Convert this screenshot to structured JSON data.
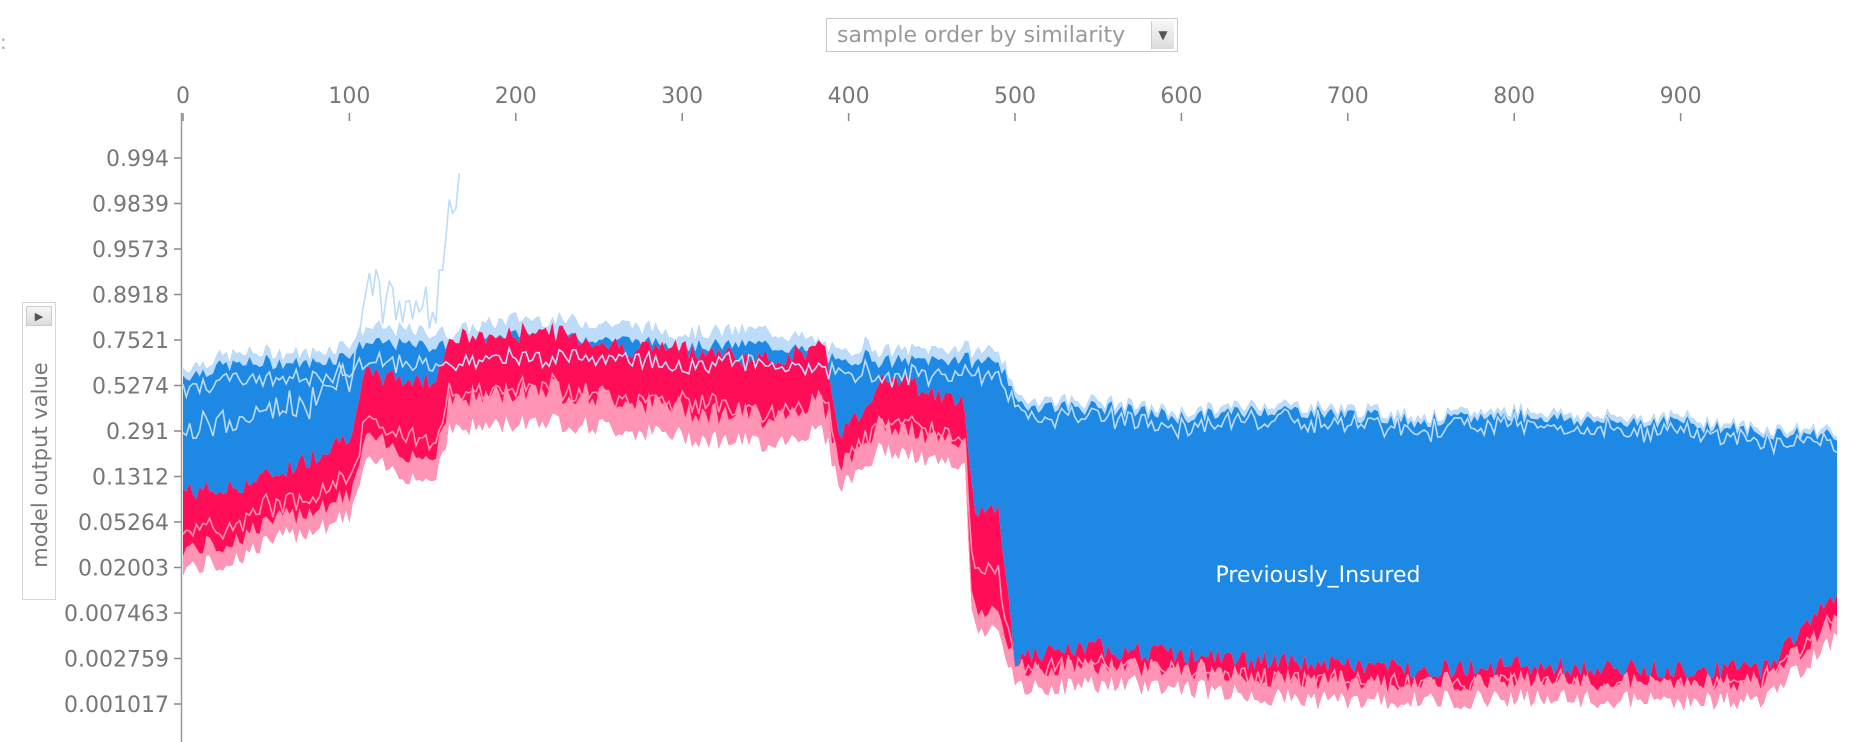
{
  "controls": {
    "ordering_select": "sample order by similarity",
    "ordering_options": [
      "sample order by similarity"
    ],
    "ylabel_select": "model output value",
    "edge_mark": ":"
  },
  "colors": {
    "negative_dark": "#1e88e5",
    "negative_light": "#bcdcfa",
    "positive_dark": "#ff0d57",
    "positive_light": "#ff94b4",
    "axis": "#888888"
  },
  "chart_data": {
    "type": "area",
    "subtype": "stacked force plot",
    "x_ticks": [
      0,
      100,
      200,
      300,
      400,
      500,
      600,
      700,
      800,
      900
    ],
    "xlim": [
      0,
      1000
    ],
    "y_ticks": [
      "0.994",
      "0.9839",
      "0.9573",
      "0.8918",
      "0.7521",
      "0.5274",
      "0.291",
      "0.1312",
      "0.05264",
      "0.02003",
      "0.007463",
      "0.002759",
      "0.001017"
    ],
    "y_scale": "logit",
    "feature_annotation": "Previously_Insured",
    "series_estimate": {
      "x": [
        0,
        25,
        50,
        75,
        100,
        110,
        150,
        160,
        200,
        210,
        265,
        300,
        350,
        385,
        395,
        410,
        420,
        470,
        475,
        490,
        500,
        550,
        600,
        650,
        700,
        750,
        800,
        850,
        900,
        950,
        994
      ],
      "upper_edge": [
        0.62,
        0.68,
        0.7,
        0.69,
        0.74,
        0.8,
        0.78,
        0.78,
        0.83,
        0.83,
        0.81,
        0.78,
        0.79,
        0.74,
        0.68,
        0.74,
        0.7,
        0.72,
        0.7,
        0.72,
        0.46,
        0.44,
        0.38,
        0.43,
        0.4,
        0.36,
        0.4,
        0.36,
        0.36,
        0.3,
        0.3
      ],
      "positive_top": [
        0.1,
        0.1,
        0.13,
        0.18,
        0.28,
        0.58,
        0.55,
        0.76,
        0.77,
        0.8,
        0.72,
        0.72,
        0.66,
        0.72,
        0.28,
        0.4,
        0.6,
        0.42,
        0.07,
        0.07,
        0.0028,
        0.0035,
        0.003,
        0.0026,
        0.0024,
        0.0022,
        0.0024,
        0.0022,
        0.0022,
        0.0022,
        0.012
      ],
      "output_value": [
        0.02,
        0.022,
        0.034,
        0.045,
        0.06,
        0.17,
        0.12,
        0.3,
        0.33,
        0.35,
        0.3,
        0.27,
        0.24,
        0.3,
        0.11,
        0.16,
        0.22,
        0.15,
        0.005,
        0.006,
        0.0014,
        0.0016,
        0.0015,
        0.0012,
        0.0011,
        0.0011,
        0.0012,
        0.0011,
        0.0011,
        0.0011,
        0.0045
      ]
    }
  }
}
